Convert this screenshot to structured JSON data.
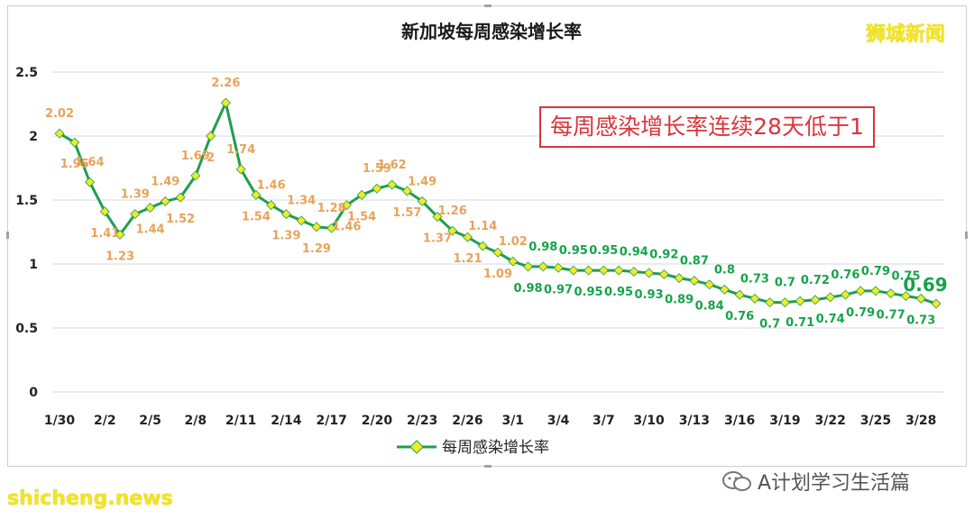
{
  "brand": "狮城新闻",
  "watermark": "A计划学习生活篇",
  "bottom_site": "shicheng.news",
  "colors": {
    "orange": "#e8a35a",
    "green": "#16a34a",
    "line": "#1f9e4f",
    "marker": "#f0ea2a",
    "callout": "#d9353b",
    "grid": "#d9d9d9"
  },
  "chart_data": {
    "type": "line",
    "title": "新加坡每周感染增长率",
    "callout": "每周感染增长率连续28天低于1",
    "legend": "每周感染增长率",
    "legend_position": "bottom",
    "grid": true,
    "ylim": [
      0,
      2.5
    ],
    "y_ticks": [
      "0",
      "0.5",
      "1",
      "1.5",
      "2",
      "2.5"
    ],
    "x_ticks": [
      "1/30",
      "2/2",
      "2/5",
      "2/8",
      "2/11",
      "2/14",
      "2/17",
      "2/20",
      "2/23",
      "2/26",
      "3/1",
      "3/4",
      "3/7",
      "3/10",
      "3/13",
      "3/16",
      "3/19",
      "3/22",
      "3/25",
      "3/28"
    ],
    "x": [
      "1/30",
      "1/31",
      "2/1",
      "2/2",
      "2/3",
      "2/4",
      "2/5",
      "2/6",
      "2/7",
      "2/8",
      "2/9",
      "2/10",
      "2/11",
      "2/12",
      "2/13",
      "2/14",
      "2/15",
      "2/16",
      "2/17",
      "2/18",
      "2/19",
      "2/20",
      "2/21",
      "2/22",
      "2/23",
      "2/24",
      "2/25",
      "2/26",
      "2/27",
      "2/28",
      "3/1",
      "3/2",
      "3/3",
      "3/4",
      "3/5",
      "3/6",
      "3/7",
      "3/8",
      "3/9",
      "3/10",
      "3/11",
      "3/12",
      "3/13",
      "3/14",
      "3/15",
      "3/16",
      "3/17",
      "3/18",
      "3/19",
      "3/20",
      "3/21",
      "3/22",
      "3/23",
      "3/24",
      "3/25",
      "3/26",
      "3/27",
      "3/28",
      "3/29"
    ],
    "values": [
      2.02,
      1.95,
      1.64,
      1.41,
      1.23,
      1.39,
      1.44,
      1.49,
      1.52,
      1.69,
      2,
      2.26,
      1.74,
      1.54,
      1.46,
      1.39,
      1.34,
      1.29,
      1.28,
      1.46,
      1.54,
      1.59,
      1.62,
      1.57,
      1.49,
      1.37,
      1.26,
      1.21,
      1.14,
      1.09,
      1.02,
      0.98,
      0.98,
      0.97,
      0.95,
      0.95,
      0.95,
      0.95,
      0.94,
      0.93,
      0.92,
      0.89,
      0.87,
      0.84,
      0.8,
      0.76,
      0.73,
      0.7,
      0.7,
      0.71,
      0.72,
      0.74,
      0.76,
      0.79,
      0.79,
      0.77,
      0.75,
      0.73,
      0.69
    ],
    "label_positions": [
      "above",
      "below",
      "above",
      "below",
      "below",
      "above",
      "below",
      "above",
      "below",
      "above",
      "below",
      "above",
      "above",
      "below",
      "above",
      "below",
      "above",
      "below",
      "above",
      "below",
      "below",
      "above",
      "above",
      "below",
      "above",
      "below",
      "above",
      "below",
      "above",
      "below",
      "above",
      "below",
      "above",
      "below",
      "above",
      "below",
      "above",
      "below",
      "above",
      "below",
      "above",
      "below",
      "above",
      "below",
      "above",
      "below",
      "above",
      "below",
      "above",
      "below",
      "above",
      "below",
      "above",
      "below",
      "above",
      "below",
      "above",
      "below",
      "above"
    ],
    "color_change_index": 31
  }
}
